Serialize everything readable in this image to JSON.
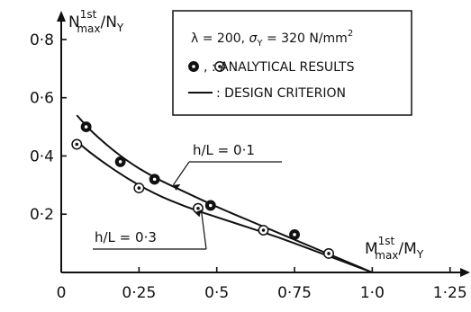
{
  "chart_data": {
    "type": "scatter",
    "x_axis": {
      "label_main": "M",
      "label_sup": "1st",
      "label_sub": "max",
      "label_rest": "/M",
      "label_rest_sub": "Y",
      "range": [
        0,
        1.3
      ],
      "ticks": [
        0,
        0.25,
        0.5,
        0.75,
        1.0,
        1.25
      ],
      "tick_labels": [
        "0",
        "0·25",
        "0·5",
        "0·75",
        "1·0",
        "1·25"
      ]
    },
    "y_axis": {
      "label_main": "N",
      "label_sup": "1st",
      "label_sub": "max",
      "label_rest": "/N",
      "label_rest_sub": "Y",
      "range": [
        0,
        0.88
      ],
      "ticks": [
        0.2,
        0.4,
        0.6,
        0.8
      ],
      "tick_labels": [
        "0·2",
        "0·4",
        "0·6",
        "0·8"
      ]
    },
    "grid": false,
    "legend": {
      "placement": "top-right",
      "lines": [
        {
          "parts": [
            "λ = 200,  ",
            "σ",
            "Y",
            " = 320 N/mm",
            "2"
          ]
        },
        {
          "text": "  ,    : ANALYTICAL RESULTS"
        },
        {
          "text": " : DESIGN CRITERION"
        }
      ]
    },
    "series": [
      {
        "label": "h/L = 0·1",
        "marker": "filled-dot-circle",
        "points": [
          [
            0.08,
            0.5
          ],
          [
            0.19,
            0.38
          ],
          [
            0.3,
            0.32
          ],
          [
            0.48,
            0.23
          ],
          [
            0.75,
            0.13
          ]
        ],
        "curve": [
          [
            0.05,
            0.54
          ],
          [
            0.1,
            0.48
          ],
          [
            0.2,
            0.39
          ],
          [
            0.3,
            0.325
          ],
          [
            0.4,
            0.275
          ],
          [
            0.5,
            0.225
          ],
          [
            0.6,
            0.18
          ],
          [
            0.7,
            0.135
          ],
          [
            0.8,
            0.09
          ],
          [
            0.9,
            0.045
          ],
          [
            1.0,
            0.0
          ]
        ]
      },
      {
        "label": "h/L = 0·3",
        "marker": "open-dot-circle",
        "points": [
          [
            0.05,
            0.44
          ],
          [
            0.25,
            0.29
          ],
          [
            0.44,
            0.22
          ],
          [
            0.65,
            0.145
          ],
          [
            0.86,
            0.065
          ]
        ],
        "curve": [
          [
            0.05,
            0.45
          ],
          [
            0.1,
            0.405
          ],
          [
            0.2,
            0.33
          ],
          [
            0.3,
            0.27
          ],
          [
            0.4,
            0.225
          ],
          [
            0.5,
            0.19
          ],
          [
            0.6,
            0.155
          ],
          [
            0.7,
            0.12
          ],
          [
            0.8,
            0.08
          ],
          [
            0.9,
            0.04
          ],
          [
            1.0,
            0.0
          ]
        ]
      }
    ],
    "annotations": [
      {
        "text": "h/L = 0·1",
        "series": 0
      },
      {
        "text": "h/L = 0·3",
        "series": 1
      }
    ]
  }
}
